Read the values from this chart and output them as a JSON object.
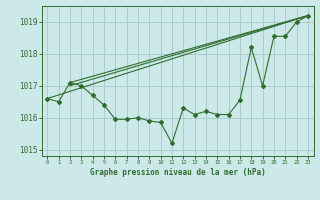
{
  "title": "",
  "xlabel": "Graphe pression niveau de la mer (hPa)",
  "bg_color": "#cce8e8",
  "grid_color": "#aacccc",
  "line_color": "#2d6e2d",
  "xlim": [
    -0.5,
    23.5
  ],
  "ylim": [
    1014.8,
    1019.5
  ],
  "yticks": [
    1015,
    1016,
    1017,
    1018,
    1019
  ],
  "xticks": [
    0,
    1,
    2,
    3,
    4,
    5,
    6,
    7,
    8,
    9,
    10,
    11,
    12,
    13,
    14,
    15,
    16,
    17,
    18,
    19,
    20,
    21,
    22,
    23
  ],
  "series1_x": [
    0,
    1,
    2,
    3,
    4,
    5,
    6,
    7,
    8,
    9,
    10,
    11,
    12,
    13,
    14,
    15,
    16,
    17,
    18,
    19,
    20,
    21,
    22,
    23
  ],
  "series1_y": [
    1016.6,
    1016.5,
    1017.1,
    1017.0,
    1016.7,
    1016.4,
    1015.95,
    1015.95,
    1016.0,
    1015.9,
    1015.85,
    1015.2,
    1016.3,
    1016.1,
    1016.2,
    1016.1,
    1016.1,
    1016.55,
    1018.2,
    1017.0,
    1018.55,
    1018.55,
    1019.0,
    1019.2
  ],
  "series2_x": [
    0,
    23
  ],
  "series2_y": [
    1016.6,
    1019.2
  ],
  "series3_x": [
    2,
    23
  ],
  "series3_y": [
    1017.1,
    1019.2
  ],
  "series4_x": [
    2,
    23
  ],
  "series4_y": [
    1017.0,
    1019.2
  ]
}
